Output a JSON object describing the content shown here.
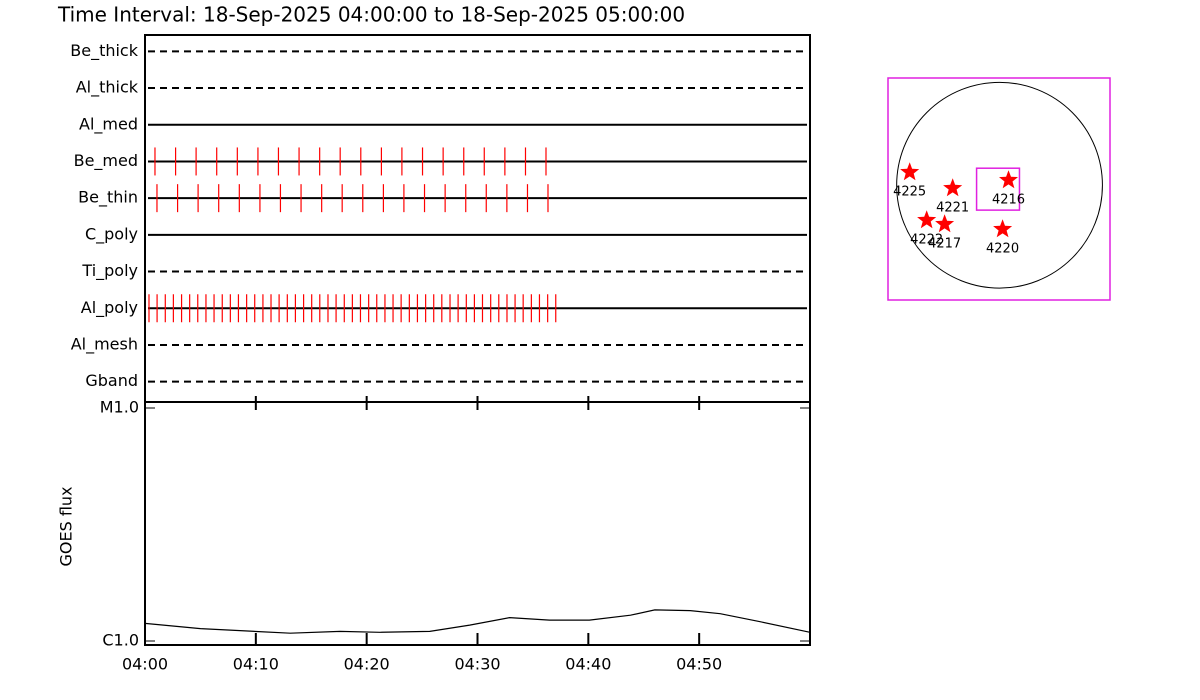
{
  "title": "Time Interval: 18-Sep-2025 04:00:00 to 18-Sep-2025 05:00:00",
  "chart_data": [
    {
      "type": "event",
      "xlim": [
        0,
        60
      ],
      "series": [
        {
          "name": "Be_thick",
          "dashed": true,
          "times": []
        },
        {
          "name": "Al_thick",
          "dashed": true,
          "times": []
        },
        {
          "name": "Al_med",
          "dashed": false,
          "times": []
        },
        {
          "name": "Be_med",
          "dashed": false,
          "times": [
            0.9,
            2.76,
            4.61,
            6.47,
            8.33,
            10.19,
            12.04,
            13.9,
            15.76,
            17.61,
            19.47,
            21.33,
            23.18,
            25.04,
            26.9,
            28.76,
            30.61,
            32.47,
            34.33,
            36.18
          ]
        },
        {
          "name": "Be_thin",
          "dashed": false,
          "times": [
            1.08,
            2.94,
            4.79,
            6.65,
            8.51,
            10.37,
            12.22,
            14.08,
            15.94,
            17.79,
            19.65,
            21.51,
            23.36,
            25.22,
            27.08,
            28.94,
            30.79,
            32.65,
            34.51,
            36.36
          ]
        },
        {
          "name": "C_poly",
          "dashed": false,
          "times": []
        },
        {
          "name": "Ti_poly",
          "dashed": true,
          "times": []
        },
        {
          "name": "Al_poly",
          "dashed": false,
          "times": [
            0.36,
            1.09,
            1.83,
            2.56,
            3.3,
            4.03,
            4.76,
            5.5,
            6.23,
            6.97,
            7.7,
            8.43,
            9.17,
            9.9,
            10.64,
            11.37,
            12.1,
            12.84,
            13.57,
            14.31,
            15.04,
            15.77,
            16.51,
            17.24,
            17.98,
            18.71,
            19.44,
            20.18,
            20.91,
            21.65,
            22.38,
            23.11,
            23.85,
            24.58,
            25.32,
            26.05,
            26.78,
            27.52,
            28.25,
            28.99,
            29.72,
            30.45,
            31.19,
            31.92,
            32.66,
            33.39,
            34.12,
            34.86,
            35.59,
            36.33,
            37.06
          ]
        },
        {
          "name": "Al_mesh",
          "dashed": true,
          "times": []
        },
        {
          "name": "Gband",
          "dashed": true,
          "times": []
        }
      ],
      "color": "#ff0000"
    },
    {
      "type": "line",
      "ylabel": "GOES flux",
      "log_y": true,
      "xlim": [
        0,
        60
      ],
      "xticks": [
        {
          "value": 0,
          "label": "04:00"
        },
        {
          "value": 10,
          "label": "04:10"
        },
        {
          "value": 20,
          "label": "04:20"
        },
        {
          "value": 30,
          "label": "04:30"
        },
        {
          "value": 40,
          "label": "04:40"
        },
        {
          "value": 50,
          "label": "04:50"
        }
      ],
      "ylim": [
        1e-06,
        1e-05
      ],
      "yticks": [
        {
          "value": 1e-06,
          "label": "C1.0"
        },
        {
          "value": 1e-05,
          "label": "M1.0"
        }
      ],
      "x": [
        0,
        5,
        13.1,
        17.6,
        21.2,
        25.7,
        29.3,
        32.9,
        36.5,
        40.1,
        43.8,
        46,
        49.2,
        51.9,
        55.5,
        60
      ],
      "values": [
        1.19e-06,
        1.13e-06,
        1.08e-06,
        1.1e-06,
        1.09e-06,
        1.1e-06,
        1.17e-06,
        1.26e-06,
        1.23e-06,
        1.23e-06,
        1.29e-06,
        1.36e-06,
        1.35e-06,
        1.31e-06,
        1.21e-06,
        1.09e-06
      ],
      "color": "#000000"
    },
    {
      "type": "map",
      "xlim": [
        -1030,
        1020
      ],
      "ylim": [
        -1060,
        990
      ],
      "radius": 950,
      "fov": {
        "xlim": [
          -212,
          184
        ],
        "ylim": [
          -230,
          157
        ]
      },
      "frame_color": "#e020e0",
      "star_color": "#ff0000",
      "regions": [
        {
          "label": "4225",
          "x": -830,
          "y": 120
        },
        {
          "label": "4221",
          "x": -433,
          "y": -28
        },
        {
          "label": "4216",
          "x": 83,
          "y": 46
        },
        {
          "label": "4222",
          "x": -673,
          "y": -323
        },
        {
          "label": "4217",
          "x": -507,
          "y": -360
        },
        {
          "label": "4220",
          "x": 28,
          "y": -406
        }
      ]
    }
  ]
}
